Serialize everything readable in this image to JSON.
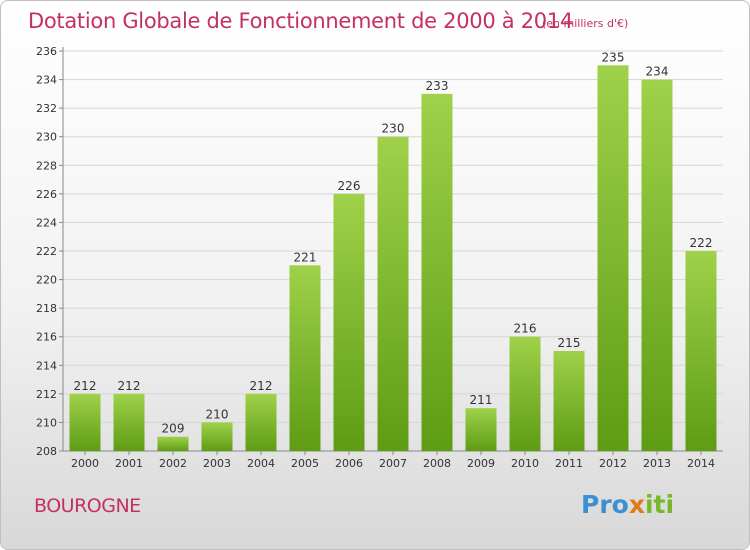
{
  "title": "Dotation Globale de Fonctionnement de 2000 à 2014",
  "subtitle": "(en milliers d'€)",
  "commune": "BOUROGNE",
  "logo": {
    "p1": "Pro",
    "p2": "x",
    "p3": "iti"
  },
  "colors": {
    "title": "#c4305f",
    "bar_top": "#9fd14a",
    "bar_bottom": "#5e9c14"
  },
  "chart_data": {
    "type": "bar",
    "categories": [
      "2000",
      "2001",
      "2002",
      "2003",
      "2004",
      "2005",
      "2006",
      "2007",
      "2008",
      "2009",
      "2010",
      "2011",
      "2012",
      "2013",
      "2014"
    ],
    "values": [
      212,
      212,
      209,
      210,
      212,
      221,
      226,
      230,
      233,
      211,
      216,
      215,
      235,
      234,
      222
    ],
    "ylim": [
      208,
      236
    ],
    "yticks": [
      208,
      210,
      212,
      214,
      216,
      218,
      220,
      222,
      224,
      226,
      228,
      230,
      232,
      234,
      236
    ],
    "grid": true,
    "data_labels": true
  }
}
